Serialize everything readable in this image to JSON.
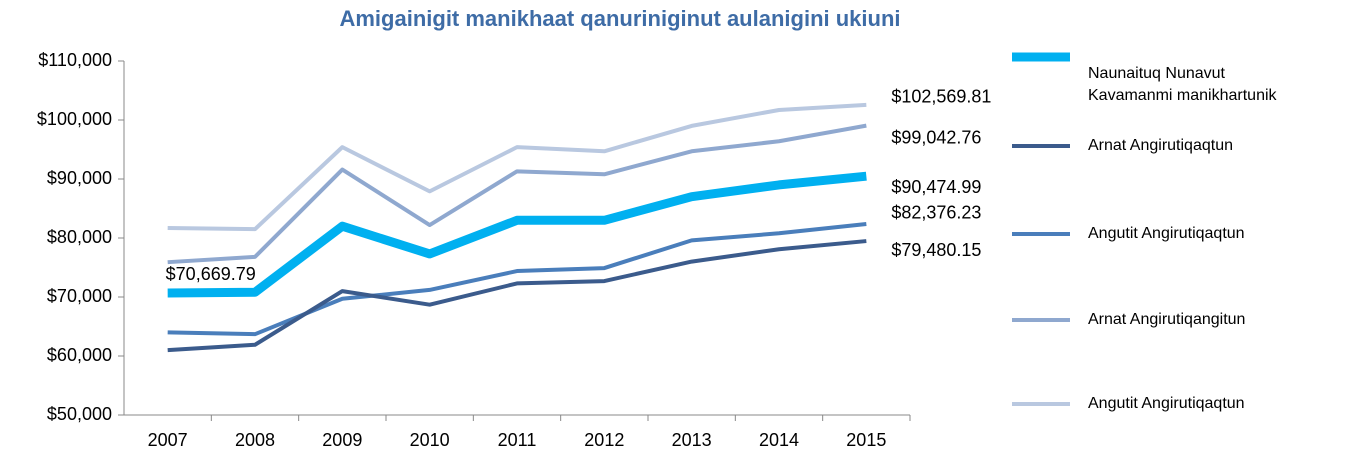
{
  "chart_data": {
    "type": "line",
    "title": "Amigainigit manikhaat qanuriniginut aulanigini ukiuni",
    "categories": [
      "2007",
      "2008",
      "2009",
      "2010",
      "2011",
      "2012",
      "2013",
      "2014",
      "2015"
    ],
    "ylim": [
      50000,
      110000
    ],
    "yticks": [
      {
        "value": 50000,
        "label": "$50,000"
      },
      {
        "value": 60000,
        "label": "$60,000"
      },
      {
        "value": 70000,
        "label": "$70,000"
      },
      {
        "value": 80000,
        "label": "$80,000"
      },
      {
        "value": 90000,
        "label": "$90,000"
      },
      {
        "value": 100000,
        "label": "$100,000"
      },
      {
        "value": 110000,
        "label": "$110,000"
      }
    ],
    "series": [
      {
        "name": "Naunaituq Nunavut Kavamanmi manikhartunik",
        "color": "#00b0f0",
        "values": [
          70669.79,
          70800,
          82000,
          77300,
          83000,
          83000,
          87000,
          89000,
          90474.99
        ],
        "value_labels": [
          "$70,669.79",
          null,
          null,
          null,
          null,
          null,
          null,
          null,
          "$90,474.99"
        ]
      },
      {
        "name": "Arnat Angirutiqaqtun",
        "color": "#3b5b8c",
        "values": [
          61000,
          61900,
          71000,
          68700,
          72300,
          72700,
          76000,
          78100,
          79480.15
        ],
        "value_labels": [
          null,
          null,
          null,
          null,
          null,
          null,
          null,
          null,
          "$79,480.15"
        ]
      },
      {
        "name": "Angutit Angirutiqaqtun",
        "color": "#4a7ebb",
        "values": [
          64000,
          63700,
          69700,
          71200,
          74400,
          74900,
          79600,
          80800,
          82376.23
        ],
        "value_labels": [
          null,
          null,
          null,
          null,
          null,
          null,
          null,
          null,
          "$82,376.23"
        ]
      },
      {
        "name": "Arnat Angirutiqangitun",
        "color": "#8fa8cf",
        "values": [
          75900,
          76800,
          91600,
          82200,
          91300,
          90800,
          94700,
          96400,
          99042.76
        ],
        "value_labels": [
          null,
          null,
          null,
          null,
          null,
          null,
          null,
          null,
          "$99,042.76"
        ]
      },
      {
        "name": "Angutit Angirutiqaqtun",
        "color": "#b9c8e0",
        "values": [
          81700,
          81500,
          95400,
          87900,
          95400,
          94700,
          99000,
          101700,
          102569.81
        ],
        "value_labels": [
          null,
          null,
          null,
          null,
          null,
          null,
          null,
          null,
          "$102,569.81"
        ]
      }
    ]
  }
}
